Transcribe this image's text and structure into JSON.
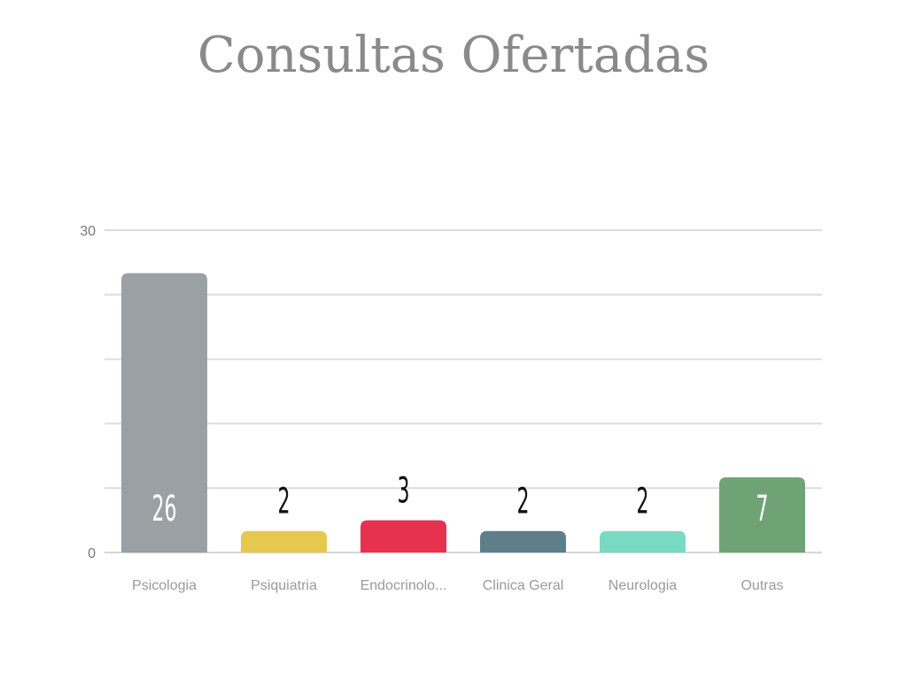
{
  "chart_data": {
    "type": "bar",
    "title": "Consultas Ofertadas",
    "categories": [
      "Psicologia",
      "Psiquiatria",
      "Endocrinolo...",
      "Clinica Geral",
      "Neurologia",
      "Outras"
    ],
    "values": [
      26,
      2,
      3,
      2,
      2,
      7
    ],
    "colors": [
      "#9aa0a4",
      "#e6c84e",
      "#e6314f",
      "#5e7f8a",
      "#79dac3",
      "#6fa376"
    ],
    "data_labels": [
      "26",
      "2",
      "3",
      "2",
      "2",
      "7"
    ],
    "ylim": [
      0,
      30
    ],
    "yticks": [
      0,
      30
    ],
    "grid_step": 6,
    "grid": true,
    "xlabel": "",
    "ylabel": ""
  }
}
